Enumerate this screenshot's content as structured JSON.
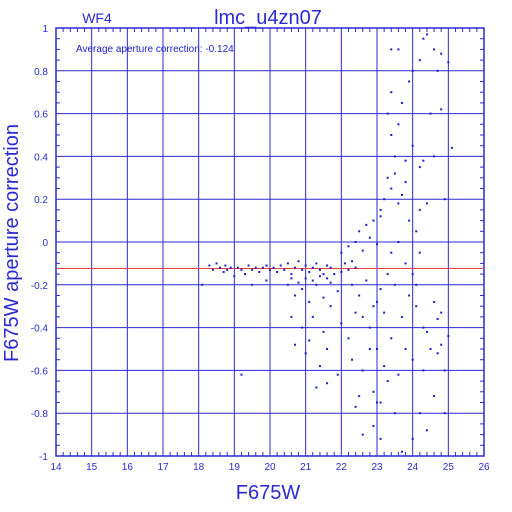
{
  "header": {
    "chip_label": "WF4",
    "title": "lmc_u4zn07"
  },
  "annotation": "Average aperture correction: -0.124",
  "colors": {
    "axis": "#2a2ad0",
    "points": "#1c1ccc",
    "average_line": "#e04040",
    "background": "#ffffff"
  },
  "chart_data": {
    "type": "scatter",
    "xlabel": "F675W",
    "ylabel": "F675W aperture correction",
    "xlim": [
      14,
      26
    ],
    "ylim": [
      -1,
      1
    ],
    "xticks": [
      "14",
      "15",
      "16",
      "17",
      "18",
      "19",
      "20",
      "21",
      "22",
      "23",
      "24",
      "25",
      "26"
    ],
    "yticks": [
      "-1",
      "-0.8",
      "-0.6",
      "-0.4",
      "-0.2",
      "0",
      "0.2",
      "0.4",
      "0.6",
      "0.8",
      "1"
    ],
    "grid": true,
    "average_line_y": -0.124,
    "points": [
      [
        18.1,
        -0.2
      ],
      [
        18.3,
        -0.11
      ],
      [
        18.4,
        -0.13
      ],
      [
        18.5,
        -0.1
      ],
      [
        18.6,
        -0.12
      ],
      [
        18.7,
        -0.14
      ],
      [
        18.75,
        -0.11
      ],
      [
        18.8,
        -0.13
      ],
      [
        18.9,
        -0.12
      ],
      [
        19.0,
        -0.16
      ],
      [
        19.1,
        -0.12
      ],
      [
        19.2,
        -0.13
      ],
      [
        19.3,
        -0.15
      ],
      [
        19.4,
        -0.11
      ],
      [
        19.5,
        -0.13
      ],
      [
        19.6,
        -0.12
      ],
      [
        19.7,
        -0.14
      ],
      [
        19.8,
        -0.12
      ],
      [
        19.9,
        -0.11
      ],
      [
        20.0,
        -0.13
      ],
      [
        19.2,
        -0.62
      ],
      [
        19.5,
        -0.2
      ],
      [
        19.9,
        -0.18
      ],
      [
        20.1,
        -0.12
      ],
      [
        20.2,
        -0.14
      ],
      [
        20.3,
        -0.11
      ],
      [
        20.4,
        -0.13
      ],
      [
        20.5,
        -0.1
      ],
      [
        20.6,
        -0.15
      ],
      [
        20.7,
        -0.12
      ],
      [
        20.8,
        -0.09
      ],
      [
        20.9,
        -0.13
      ],
      [
        21.0,
        -0.11
      ],
      [
        21.1,
        -0.14
      ],
      [
        21.2,
        -0.12
      ],
      [
        21.3,
        -0.1
      ],
      [
        21.4,
        -0.13
      ],
      [
        21.5,
        -0.15
      ],
      [
        21.6,
        -0.11
      ],
      [
        21.7,
        -0.12
      ],
      [
        20.5,
        -0.2
      ],
      [
        20.7,
        -0.25
      ],
      [
        20.9,
        -0.22
      ],
      [
        21.1,
        -0.28
      ],
      [
        21.3,
        -0.2
      ],
      [
        21.5,
        -0.26
      ],
      [
        21.7,
        -0.19
      ],
      [
        21.9,
        -0.23
      ],
      [
        20.6,
        -0.17
      ],
      [
        20.8,
        -0.19
      ],
      [
        21.0,
        -0.17
      ],
      [
        21.2,
        -0.18
      ],
      [
        21.4,
        -0.16
      ],
      [
        21.6,
        -0.17
      ],
      [
        21.8,
        -0.15
      ],
      [
        22.0,
        -0.14
      ],
      [
        22.1,
        -0.1
      ],
      [
        22.2,
        -0.13
      ],
      [
        22.3,
        -0.09
      ],
      [
        22.4,
        -0.12
      ],
      [
        20.6,
        -0.35
      ],
      [
        20.9,
        -0.4
      ],
      [
        21.2,
        -0.35
      ],
      [
        21.5,
        -0.42
      ],
      [
        21.7,
        -0.3
      ],
      [
        22.0,
        -0.38
      ],
      [
        22.2,
        -0.45
      ],
      [
        22.4,
        -0.33
      ],
      [
        20.7,
        -0.48
      ],
      [
        21.0,
        -0.52
      ],
      [
        21.4,
        -0.58
      ],
      [
        21.6,
        -0.5
      ],
      [
        21.9,
        -0.62
      ],
      [
        22.3,
        -0.55
      ],
      [
        22.6,
        -0.6
      ],
      [
        22.8,
        -0.5
      ],
      [
        21.3,
        -0.68
      ],
      [
        21.1,
        -0.46
      ],
      [
        22.5,
        -0.72
      ],
      [
        21.6,
        -0.66
      ],
      [
        22.0,
        -0.05
      ],
      [
        22.2,
        -0.02
      ],
      [
        22.4,
        0.0
      ],
      [
        22.6,
        -0.04
      ],
      [
        22.8,
        0.02
      ],
      [
        23.0,
        -0.01
      ],
      [
        22.5,
        0.05
      ],
      [
        22.7,
        0.08
      ],
      [
        22.9,
        0.1
      ],
      [
        23.1,
        0.12
      ],
      [
        22.3,
        -0.2
      ],
      [
        22.5,
        -0.25
      ],
      [
        22.7,
        -0.18
      ],
      [
        22.9,
        -0.3
      ],
      [
        23.1,
        -0.22
      ],
      [
        23.3,
        -0.15
      ],
      [
        22.6,
        -0.35
      ],
      [
        22.8,
        -0.4
      ],
      [
        23.0,
        -0.28
      ],
      [
        23.2,
        -0.33
      ],
      [
        23.0,
        -0.5
      ],
      [
        23.2,
        -0.58
      ],
      [
        23.4,
        -0.45
      ],
      [
        23.6,
        -0.62
      ],
      [
        23.8,
        -0.5
      ],
      [
        24.0,
        -0.55
      ],
      [
        22.9,
        -0.7
      ],
      [
        23.1,
        -0.75
      ],
      [
        23.3,
        -0.65
      ],
      [
        23.5,
        -0.8
      ],
      [
        23.7,
        -0.35
      ],
      [
        23.9,
        -0.25
      ],
      [
        24.1,
        -0.3
      ],
      [
        24.3,
        -0.4
      ],
      [
        23.5,
        -0.2
      ],
      [
        23.8,
        -0.1
      ],
      [
        24.0,
        -0.15
      ],
      [
        24.2,
        -0.05
      ],
      [
        23.4,
        -0.05
      ],
      [
        23.6,
        0.0
      ],
      [
        23.2,
        0.2
      ],
      [
        23.4,
        0.25
      ],
      [
        23.6,
        0.18
      ],
      [
        23.3,
        0.3
      ],
      [
        23.5,
        0.32
      ],
      [
        23.7,
        0.22
      ],
      [
        23.1,
        0.15
      ],
      [
        23.9,
        0.1
      ],
      [
        24.1,
        0.05
      ],
      [
        23.8,
        0.28
      ],
      [
        23.5,
        0.4
      ],
      [
        23.4,
        0.5
      ],
      [
        23.8,
        0.38
      ],
      [
        24.0,
        0.45
      ],
      [
        24.2,
        0.35
      ],
      [
        23.6,
        0.55
      ],
      [
        23.3,
        0.6
      ],
      [
        23.7,
        0.65
      ],
      [
        23.4,
        0.7
      ],
      [
        23.9,
        0.75
      ],
      [
        24.0,
        0.8
      ],
      [
        23.4,
        0.9
      ],
      [
        23.6,
        0.9
      ],
      [
        24.2,
        0.85
      ],
      [
        24.3,
        0.95
      ],
      [
        24.4,
        0.97
      ],
      [
        24.6,
        0.9
      ],
      [
        24.8,
        0.88
      ],
      [
        25.0,
        0.84
      ],
      [
        24.7,
        0.8
      ],
      [
        24.5,
        0.6
      ],
      [
        24.8,
        0.62
      ],
      [
        24.6,
        0.4
      ],
      [
        24.3,
        0.38
      ],
      [
        25.1,
        0.44
      ],
      [
        24.9,
        0.2
      ],
      [
        24.4,
        0.18
      ],
      [
        24.2,
        0.15
      ],
      [
        24.1,
        -0.2
      ],
      [
        24.6,
        -0.28
      ],
      [
        24.4,
        -0.42
      ],
      [
        24.7,
        -0.36
      ],
      [
        24.5,
        -0.5
      ],
      [
        24.8,
        -0.48
      ],
      [
        24.3,
        -0.6
      ],
      [
        24.9,
        -0.6
      ],
      [
        24.6,
        -0.72
      ],
      [
        24.2,
        -0.8
      ],
      [
        24.4,
        -0.88
      ],
      [
        24.0,
        -0.92
      ],
      [
        23.7,
        -0.98
      ],
      [
        23.0,
        -0.75
      ],
      [
        22.9,
        -0.86
      ],
      [
        23.1,
        -0.92
      ],
      [
        22.6,
        -0.9
      ],
      [
        22.4,
        -0.77
      ],
      [
        24.9,
        -0.8
      ],
      [
        24.7,
        -0.52
      ],
      [
        25.0,
        -0.44
      ],
      [
        24.8,
        -0.33
      ]
    ]
  }
}
